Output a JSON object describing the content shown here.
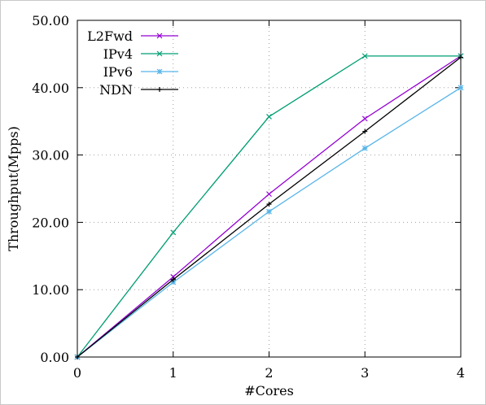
{
  "chart_data": {
    "type": "line",
    "xlabel": "#Cores",
    "ylabel": "Throughput(Mpps)",
    "x": [
      0,
      1,
      2,
      3,
      4
    ],
    "xticks": [
      "0",
      "1",
      "2",
      "3",
      "4"
    ],
    "yticks": [
      "0.00",
      "10.00",
      "20.00",
      "30.00",
      "40.00",
      "50.00"
    ],
    "xlim": [
      0,
      4
    ],
    "ylim": [
      0,
      50
    ],
    "grid": "dotted",
    "legend_position": "top-left",
    "series": [
      {
        "name": "L2Fwd",
        "color": "#9400d3",
        "marker": "cross",
        "values": [
          0,
          11.9,
          24.2,
          35.4,
          44.7
        ]
      },
      {
        "name": "IPv4",
        "color": "#009e73",
        "marker": "cross",
        "values": [
          0,
          18.5,
          35.7,
          44.7,
          44.7
        ]
      },
      {
        "name": "IPv6",
        "color": "#56b4e9",
        "marker": "star",
        "values": [
          0,
          11.1,
          21.6,
          31.0,
          40.0
        ]
      },
      {
        "name": "NDN",
        "color": "#000000",
        "marker": "plus",
        "values": [
          0,
          11.5,
          22.7,
          33.5,
          44.5
        ]
      }
    ]
  }
}
